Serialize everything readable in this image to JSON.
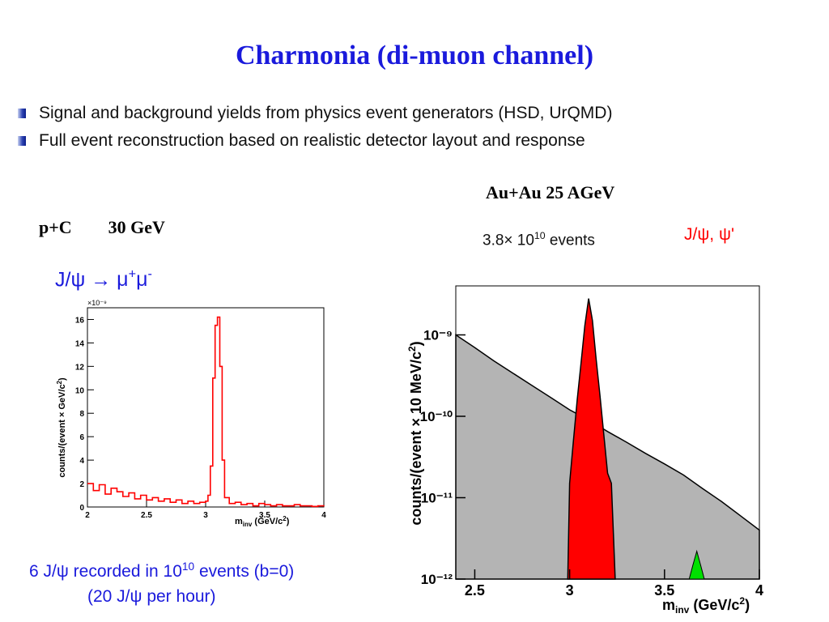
{
  "title": "Charmonia (di-muon channel)",
  "bullets": [
    "Signal and background yields from physics event generators (HSD, UrQMD)",
    "Full event reconstruction based on realistic detector layout and response"
  ],
  "left_panel": {
    "system": "p+C",
    "energy": "30 GeV",
    "decay_lhs": "J/ψ →",
    "decay_mu": "μ",
    "decay_plus": "+",
    "decay_minus": "-",
    "caption_pre": "6 J/ψ recorded in 10",
    "caption_exp": "10",
    "caption_post": " events (b=0)",
    "caption_line2": "(20 J/ψ per hour)"
  },
  "right_panel": {
    "system": "Au+Au  25 AGeV",
    "events_pre": "3.8× 10",
    "events_exp": "10",
    "events_post": " events",
    "signal_label": "J/ψ, ψ'"
  },
  "colors": {
    "title": "#1a1adc",
    "left_hist": "#ff0000",
    "signal": "#ff0000",
    "signal_label": "#ff0000",
    "background_fill": "#b4b4b4",
    "psi_prime": "#00e000"
  },
  "chart_data": [
    {
      "type": "line",
      "system": "p+C 30 GeV",
      "xlabel": "m_inv (GeV/c²)",
      "ylabel": "counts/(event × GeV/c²)",
      "y_multiplier": "×10⁻⁹",
      "xlim": [
        2,
        4
      ],
      "ylim": [
        0,
        17
      ],
      "xticks": [
        "2",
        "2.5",
        "3",
        "3.5",
        "4"
      ],
      "yticks": [
        "0",
        "2",
        "4",
        "6",
        "8",
        "10",
        "12",
        "14",
        "16"
      ],
      "grid": false,
      "series": [
        {
          "x": [
            2.0,
            2.05,
            2.1,
            2.15,
            2.2,
            2.25,
            2.3,
            2.35,
            2.4,
            2.45,
            2.5,
            2.55,
            2.6,
            2.65,
            2.7,
            2.75,
            2.8,
            2.85,
            2.9,
            2.95,
            3.0,
            3.02,
            3.04,
            3.06,
            3.08,
            3.1,
            3.12,
            3.14,
            3.16,
            3.2,
            3.25,
            3.3,
            3.35,
            3.4,
            3.45,
            3.5,
            3.55,
            3.6,
            3.65,
            3.7,
            3.75,
            3.8,
            3.85,
            3.9,
            3.95,
            4.0
          ],
          "y": [
            2.0,
            1.4,
            1.9,
            1.1,
            1.6,
            1.3,
            0.9,
            1.2,
            0.7,
            1.0,
            0.6,
            0.8,
            0.5,
            0.7,
            0.4,
            0.6,
            0.3,
            0.5,
            0.3,
            0.4,
            0.5,
            1.0,
            3.5,
            11.0,
            15.5,
            16.2,
            12.0,
            4.0,
            0.8,
            0.3,
            0.4,
            0.2,
            0.3,
            0.1,
            0.3,
            0.2,
            0.1,
            0.2,
            0.1,
            0.1,
            0.2,
            0.1,
            0.1,
            0.05,
            0.1,
            0.05
          ]
        }
      ]
    },
    {
      "type": "area",
      "system": "Au+Au 25 AGeV",
      "xlabel": "m_inv (GeV/c²)",
      "ylabel": "counts/(event × 10 MeV/c²)",
      "log_y": true,
      "xlim": [
        2.4,
        4
      ],
      "ylim": [
        1e-12,
        4e-09
      ],
      "xticks": [
        "2.5",
        "3",
        "3.5",
        "4"
      ],
      "yticks": [
        "10⁻¹²",
        "10⁻¹¹",
        "10⁻¹⁰",
        "10⁻⁹"
      ],
      "grid": false,
      "series": [
        {
          "x": [
            2.4,
            2.5,
            2.6,
            2.7,
            2.8,
            2.9,
            3.0,
            3.1,
            3.2,
            3.3,
            3.4,
            3.5,
            3.6,
            3.7,
            3.8,
            3.9,
            4.0
          ],
          "y": [
            1e-09,
            7e-10,
            4.8e-10,
            3.4e-10,
            2.4e-10,
            1.7e-10,
            1.2e-10,
            9e-11,
            6.5e-11,
            4.8e-11,
            3.5e-11,
            2.6e-11,
            1.9e-11,
            1.3e-11,
            9e-12,
            6e-12,
            4e-12
          ]
        },
        {
          "x": [
            2.99,
            3.0,
            3.02,
            3.04,
            3.06,
            3.08,
            3.1,
            3.12,
            3.14,
            3.16,
            3.18,
            3.2,
            3.22,
            3.24
          ],
          "y": [
            1e-12,
            1.5e-11,
            5e-11,
            1.6e-10,
            4.5e-10,
            1.3e-09,
            2.8e-09,
            1.5e-09,
            5e-10,
            1.8e-10,
            6e-11,
            2e-11,
            1.5e-11,
            1e-12
          ]
        },
        {
          "x": [
            3.63,
            3.65,
            3.67,
            3.69,
            3.71
          ],
          "y": [
            1e-12,
            1.5e-12,
            2.2e-12,
            1.5e-12,
            1e-12
          ]
        }
      ]
    }
  ]
}
